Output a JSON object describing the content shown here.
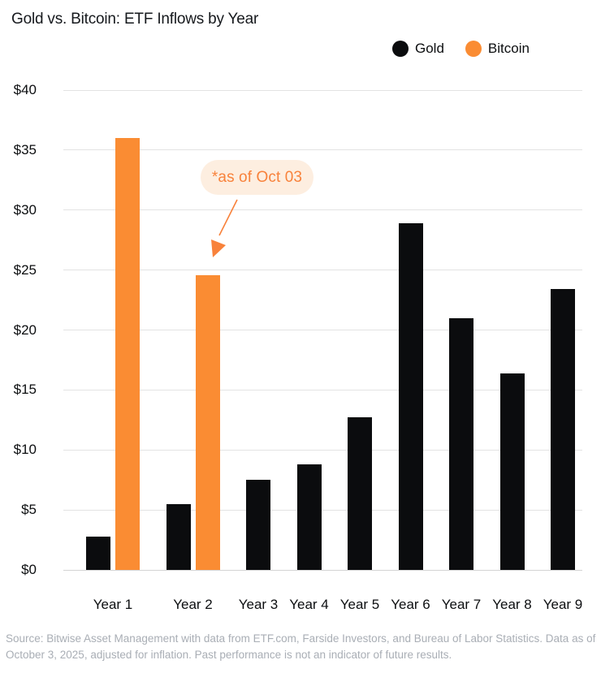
{
  "title": "Gold vs. Bitcoin: ETF Inflows by Year",
  "legend": {
    "items": [
      {
        "label": "Gold",
        "color": "#0b0c0e"
      },
      {
        "label": "Bitcoin",
        "color": "#fa8c33"
      }
    ]
  },
  "annotation": {
    "text": "*as of Oct 03",
    "text_color": "#f8823b",
    "bubble_color": "#fdeee0",
    "points_to": "Year 2 Bitcoin bar"
  },
  "footer": "Source: Bitwise Asset Management with data from ETF.com, Farside Investors, and Bureau of Labor Statistics. Data as of October 3, 2025, adjusted for inflation. Past performance is not an indicator of future results.",
  "chart_data": {
    "type": "bar",
    "title": "Gold vs. Bitcoin: ETF Inflows by Year",
    "categories": [
      "Year 1",
      "Year 2",
      "Year 3",
      "Year 4",
      "Year 5",
      "Year 6",
      "Year 7",
      "Year 8",
      "Year 9"
    ],
    "series": [
      {
        "name": "Gold",
        "color": "#0b0c0e",
        "values": [
          2.8,
          5.5,
          7.5,
          8.8,
          12.7,
          28.9,
          21.0,
          16.4,
          23.4
        ]
      },
      {
        "name": "Bitcoin",
        "color": "#fa8c33",
        "values": [
          36.0,
          24.6,
          null,
          null,
          null,
          null,
          null,
          null,
          null
        ]
      }
    ],
    "xlabel": "",
    "ylabel": "",
    "ylim": [
      0,
      40
    ],
    "ytick_labels": [
      "$0",
      "$5",
      "$10",
      "$15",
      "$20",
      "$25",
      "$30",
      "$35",
      "$40"
    ],
    "grid": true,
    "legend_position": "top-right",
    "units": "billions USD"
  }
}
